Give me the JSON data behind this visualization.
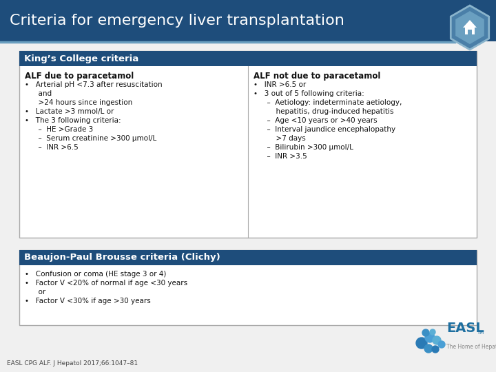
{
  "title": "Criteria for emergency liver transplantation",
  "title_bg": "#1e4d7b",
  "title_color": "#ffffff",
  "title_fontsize": 16,
  "kings_header": "King’s College criteria",
  "kings_header_bg": "#1e4d7b",
  "kings_header_color": "#ffffff",
  "kings_header_fontsize": 9.5,
  "col1_title": "ALF due to paracetamol",
  "col1_content": [
    "•   Arterial pH <7.3 after resuscitation",
    "      and",
    "      >24 hours since ingestion",
    "•   Lactate >3 mmol/L or",
    "•   The 3 following criteria:",
    "      –  HE >Grade 3",
    "      –  Serum creatinine >300 μmol/L",
    "      –  INR >6.5"
  ],
  "col2_title": "ALF not due to paracetamol",
  "col2_content": [
    "•   INR >6.5 or",
    "•   3 out of 5 following criteria:",
    "      –  Aetiology: indeterminate aetiology,",
    "          hepatitis, drug-induced hepatitis",
    "      –  Age <10 years or >40 years",
    "      –  Interval jaundice encephalopathy",
    "          >7 days",
    "      –  Bilirubin >300 μmol/L",
    "      –  INR >3.5"
  ],
  "beaujon_header": "Beaujon-Paul Brousse criteria (Clichy)",
  "beaujon_header_bg": "#1e4d7b",
  "beaujon_header_color": "#ffffff",
  "beaujon_header_fontsize": 9.5,
  "beaujon_content": [
    "•   Confusion or coma (HE stage 3 or 4)",
    "•   Factor V <20% of normal if age <30 years",
    "      or",
    "•   Factor V <30% if age >30 years"
  ],
  "footer": "EASL CPG ALF. J Hepatol 2017;66:1047–81",
  "bg_color": "#f0f0f0",
  "box_border": "#aaaaaa",
  "box_bg": "#ffffff",
  "col_divider": "#aaaaaa",
  "sep_line_color": "#6a9fc0",
  "hex_outer_color": "#4a7fa8",
  "hex_inner_color": "#6a9fc0",
  "easl_blue": "#1e6fa0",
  "easl_gray": "#888888"
}
